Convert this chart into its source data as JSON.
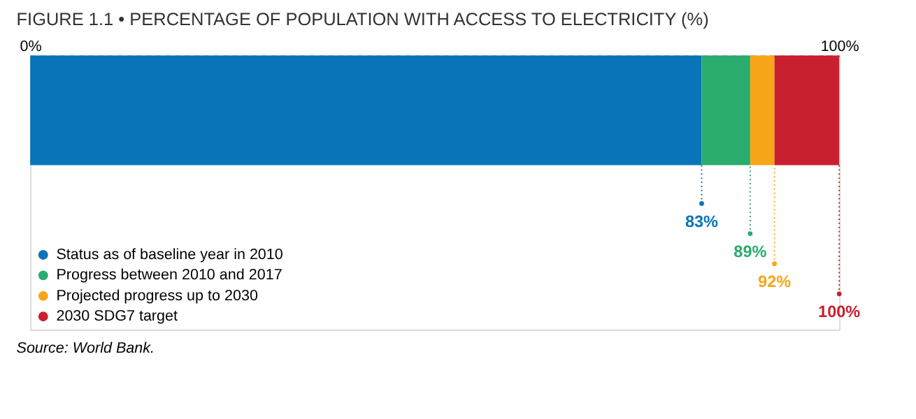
{
  "chart_data": {
    "type": "bar",
    "orientation": "horizontal",
    "stacked": true,
    "title": "FIGURE 1.1 • PERCENTAGE OF POPULATION WITH ACCESS TO ELECTRICITY (%)",
    "categories": [
      null
    ],
    "series": [
      {
        "name": "Status as of baseline year in 2010",
        "color": "#0a74b9",
        "values": [
          83
        ]
      },
      {
        "name": "Progress between 2010 and 2017",
        "color": "#2aac6f",
        "values": [
          6
        ]
      },
      {
        "name": "Projected progress up to 2030",
        "color": "#f9a51a",
        "values": [
          3
        ]
      },
      {
        "name": "2030 SDG7 target",
        "color": "#c8202f",
        "values": [
          8
        ]
      }
    ],
    "xlim": [
      0,
      100
    ],
    "xticks": [
      {
        "value": 0,
        "label": "0%"
      },
      {
        "value": 100,
        "label": "100%"
      }
    ],
    "legend": "bottom left",
    "annotations": [
      {
        "text": "83%",
        "x": 83
      },
      {
        "text": "89%",
        "x": 89
      },
      {
        "text": "92%",
        "x": 92
      },
      {
        "text": "100%",
        "x": 100
      },
      "Source: World Bank."
    ]
  }
}
